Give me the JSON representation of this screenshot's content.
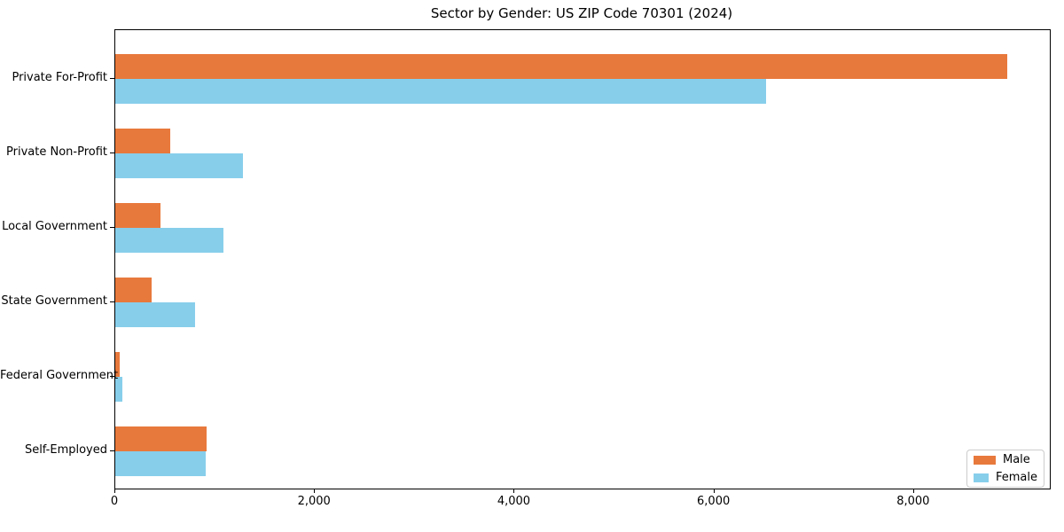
{
  "chart_data": {
    "type": "bar",
    "orientation": "horizontal",
    "title": "Sector by Gender: US ZIP Code 70301 (2024)",
    "categories": [
      "Private For-Profit",
      "Private Non-Profit",
      "Local Government",
      "State Government",
      "Federal Government",
      "Self-Employed"
    ],
    "series": [
      {
        "name": "Male",
        "color": "#e8793c",
        "values": [
          8930,
          550,
          450,
          360,
          40,
          915
        ]
      },
      {
        "name": "Female",
        "color": "#87ceeb",
        "values": [
          6520,
          1280,
          1080,
          795,
          70,
          910
        ]
      }
    ],
    "xlim": [
      0,
      9360
    ],
    "xticks": [
      0,
      2000,
      4000,
      6000,
      8000
    ],
    "xtick_labels": [
      "0",
      "2,000",
      "4,000",
      "6,000",
      "8,000"
    ],
    "grid": false,
    "legend_position": "lower right",
    "xlabel": "",
    "ylabel": ""
  }
}
